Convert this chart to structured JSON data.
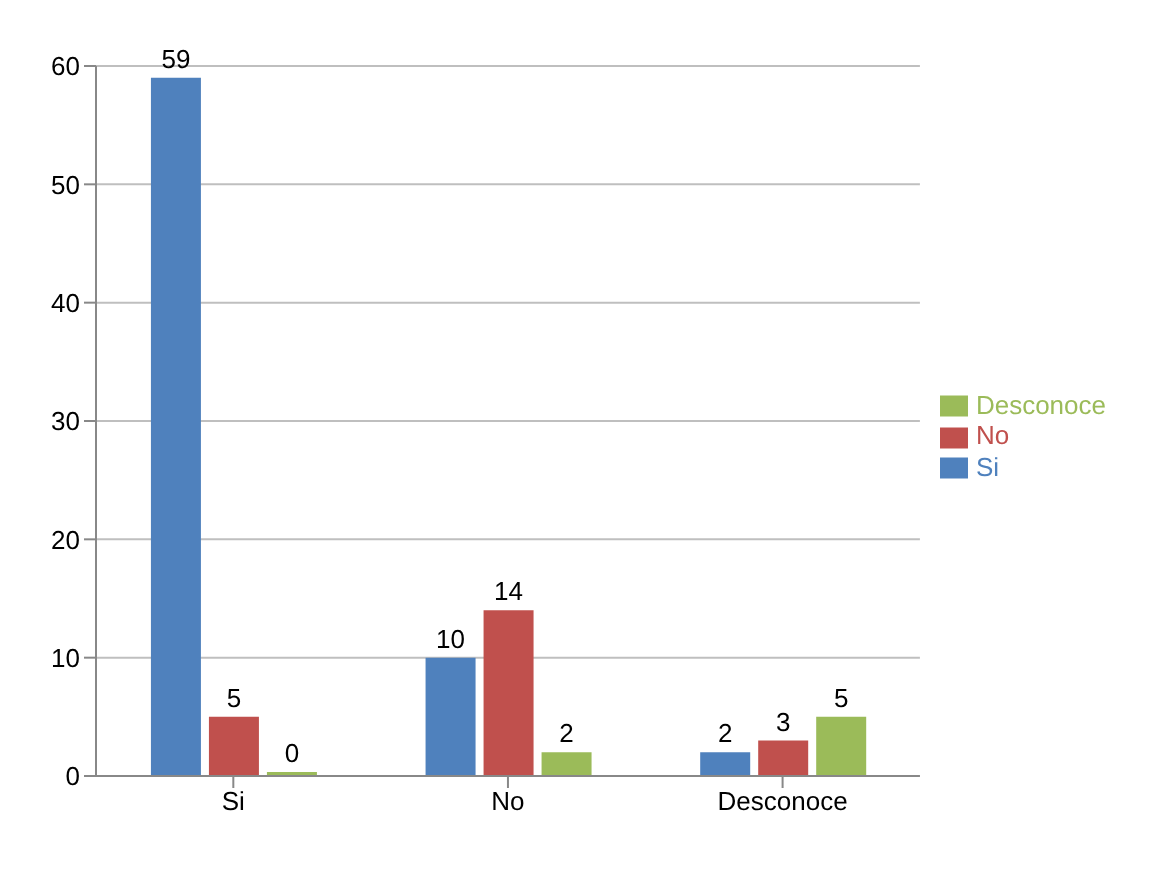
{
  "chart_data": {
    "type": "bar",
    "categories": [
      "Si",
      "No",
      "Desconoce"
    ],
    "series": [
      {
        "name": "Si",
        "color": "#4f81bd",
        "values": [
          59,
          10,
          2
        ]
      },
      {
        "name": "No",
        "color": "#c0504d",
        "values": [
          5,
          14,
          3
        ]
      },
      {
        "name": "Desconoce",
        "color": "#9bbb59",
        "values": [
          0,
          2,
          5
        ]
      }
    ],
    "ylim": [
      0,
      60
    ],
    "yticks": [
      0,
      10,
      20,
      30,
      40,
      50,
      60
    ],
    "grid": "y",
    "legend": "right",
    "data_labels": true
  }
}
